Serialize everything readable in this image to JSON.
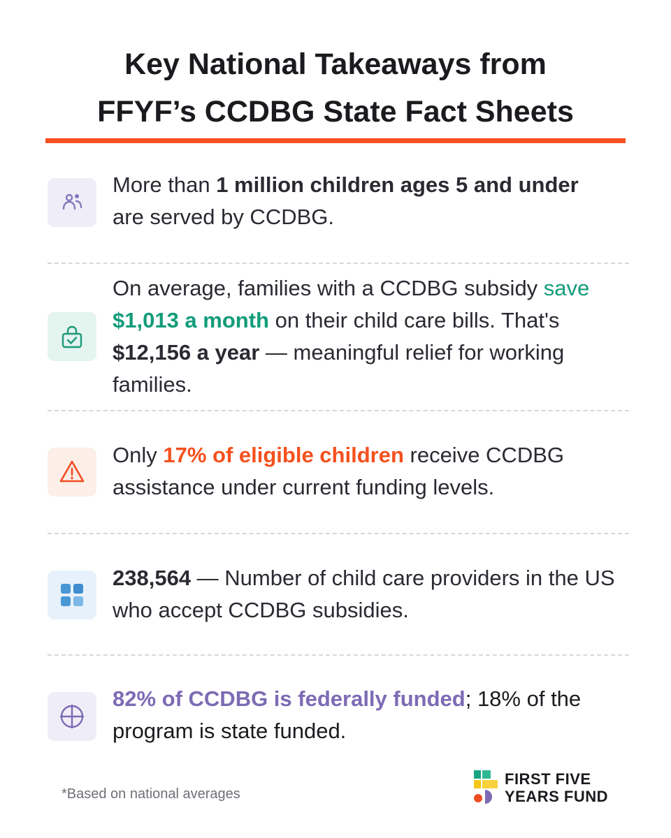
{
  "title": {
    "line1": "Key National Takeaways from",
    "line2": "FFYF’s CCDBG State Fact Sheets"
  },
  "items": [
    {
      "icon": "people-icon",
      "seg": [
        "More than ",
        "1 million children ages 5 and under",
        " are served by CCDBG."
      ]
    },
    {
      "icon": "lock-check-icon",
      "seg": [
        "On average, families with a CCDBG subsidy ",
        "save ",
        "$1,013 a month",
        " on their child care bills. That's ",
        "$12,156 a year",
        " — meaningful relief for working families."
      ]
    },
    {
      "icon": "warning-icon",
      "seg": [
        "Only ",
        "17% of eligible children",
        " receive CCDBG assistance under current funding levels."
      ]
    },
    {
      "icon": "grid-icon",
      "seg": [
        "238,564",
        " — Number of child care providers in the US who accept CCDBG subsidies."
      ]
    },
    {
      "icon": "crosshair-icon",
      "seg": [
        "82% of CCDBG is federally funded",
        "; 18% of the program is state funded."
      ]
    }
  ],
  "colors": {
    "accent_rule": "#fb5022",
    "green": "#139c7a",
    "orange": "#f4511e",
    "purple": "#7c6bb4"
  },
  "footnote": "*Based on national averages",
  "logo": {
    "line1": "FIRST FIVE",
    "line2": "YEARS FUND"
  }
}
